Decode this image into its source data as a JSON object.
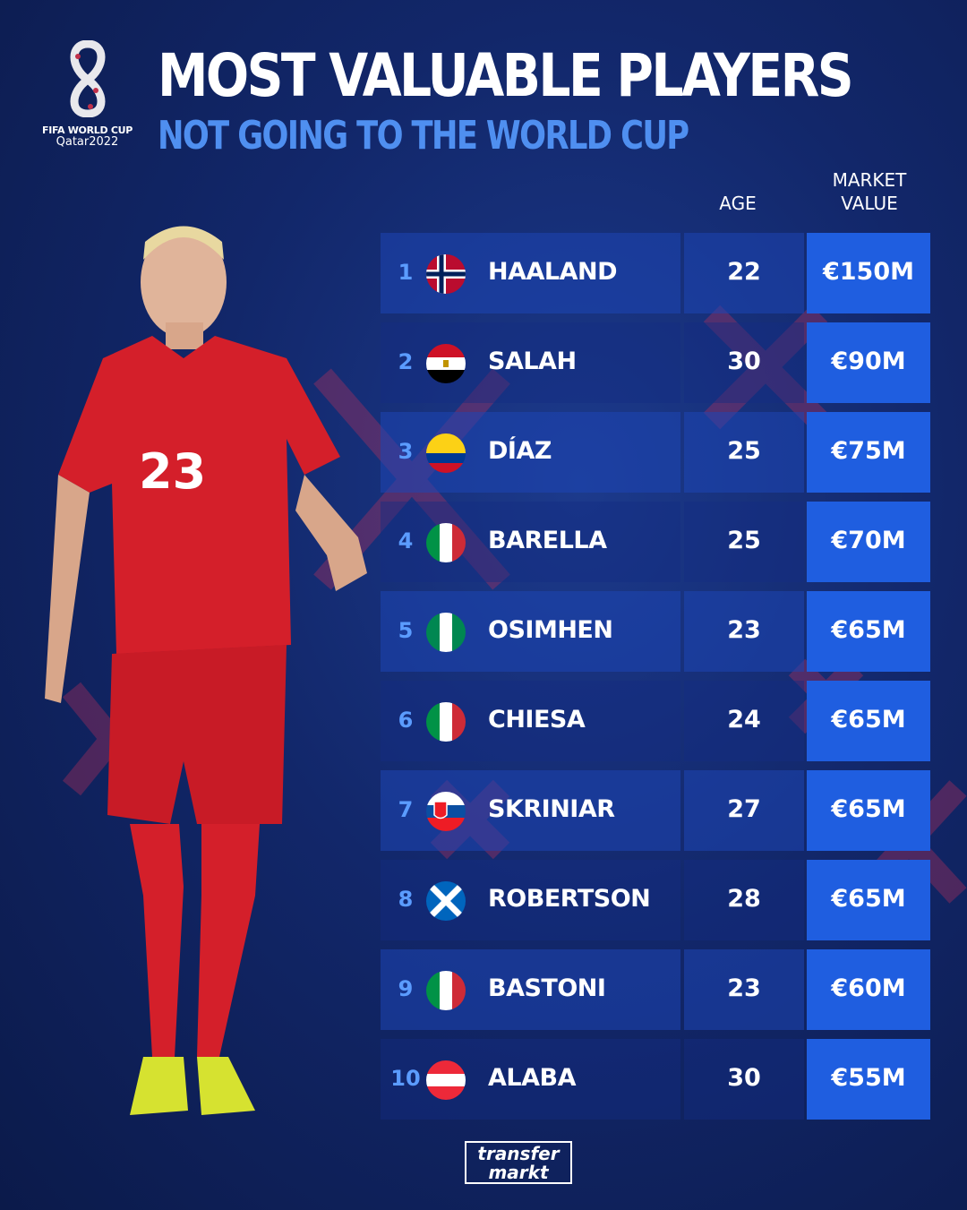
{
  "logo": {
    "line1": "FIFA WORLD CUP",
    "line2": "Qatar2022"
  },
  "title": "MOST VALUABLE PLAYERS",
  "subtitle": "NOT GOING TO THE WORLD CUP",
  "headers": {
    "age": "AGE",
    "value_line1": "MARKET",
    "value_line2": "VALUE"
  },
  "colors": {
    "accent": "#1f5ee0",
    "rank": "#5b9cff",
    "subtitle": "#4f8ff0"
  },
  "rows": [
    {
      "rank": "1",
      "flag": "norway-flag",
      "name": "HAALAND",
      "age": "22",
      "value": "€150M"
    },
    {
      "rank": "2",
      "flag": "egypt-flag",
      "name": "SALAH",
      "age": "30",
      "value": "€90M"
    },
    {
      "rank": "3",
      "flag": "colombia-flag",
      "name": "DÍAZ",
      "age": "25",
      "value": "€75M"
    },
    {
      "rank": "4",
      "flag": "italy-flag",
      "name": "BARELLA",
      "age": "25",
      "value": "€70M"
    },
    {
      "rank": "5",
      "flag": "nigeria-flag",
      "name": "OSIMHEN",
      "age": "23",
      "value": "€65M"
    },
    {
      "rank": "6",
      "flag": "italy-flag",
      "name": "CHIESA",
      "age": "24",
      "value": "€65M"
    },
    {
      "rank": "7",
      "flag": "slovakia-flag",
      "name": "SKRINIAR",
      "age": "27",
      "value": "€65M"
    },
    {
      "rank": "8",
      "flag": "scotland-flag",
      "name": "ROBERTSON",
      "age": "28",
      "value": "€65M"
    },
    {
      "rank": "9",
      "flag": "italy-flag",
      "name": "BASTONI",
      "age": "23",
      "value": "€60M"
    },
    {
      "rank": "10",
      "flag": "austria-flag",
      "name": "ALABA",
      "age": "30",
      "value": "€55M"
    }
  ],
  "player_shirt_number": "23",
  "footer": {
    "line1": "transfer",
    "line2": "markt"
  }
}
